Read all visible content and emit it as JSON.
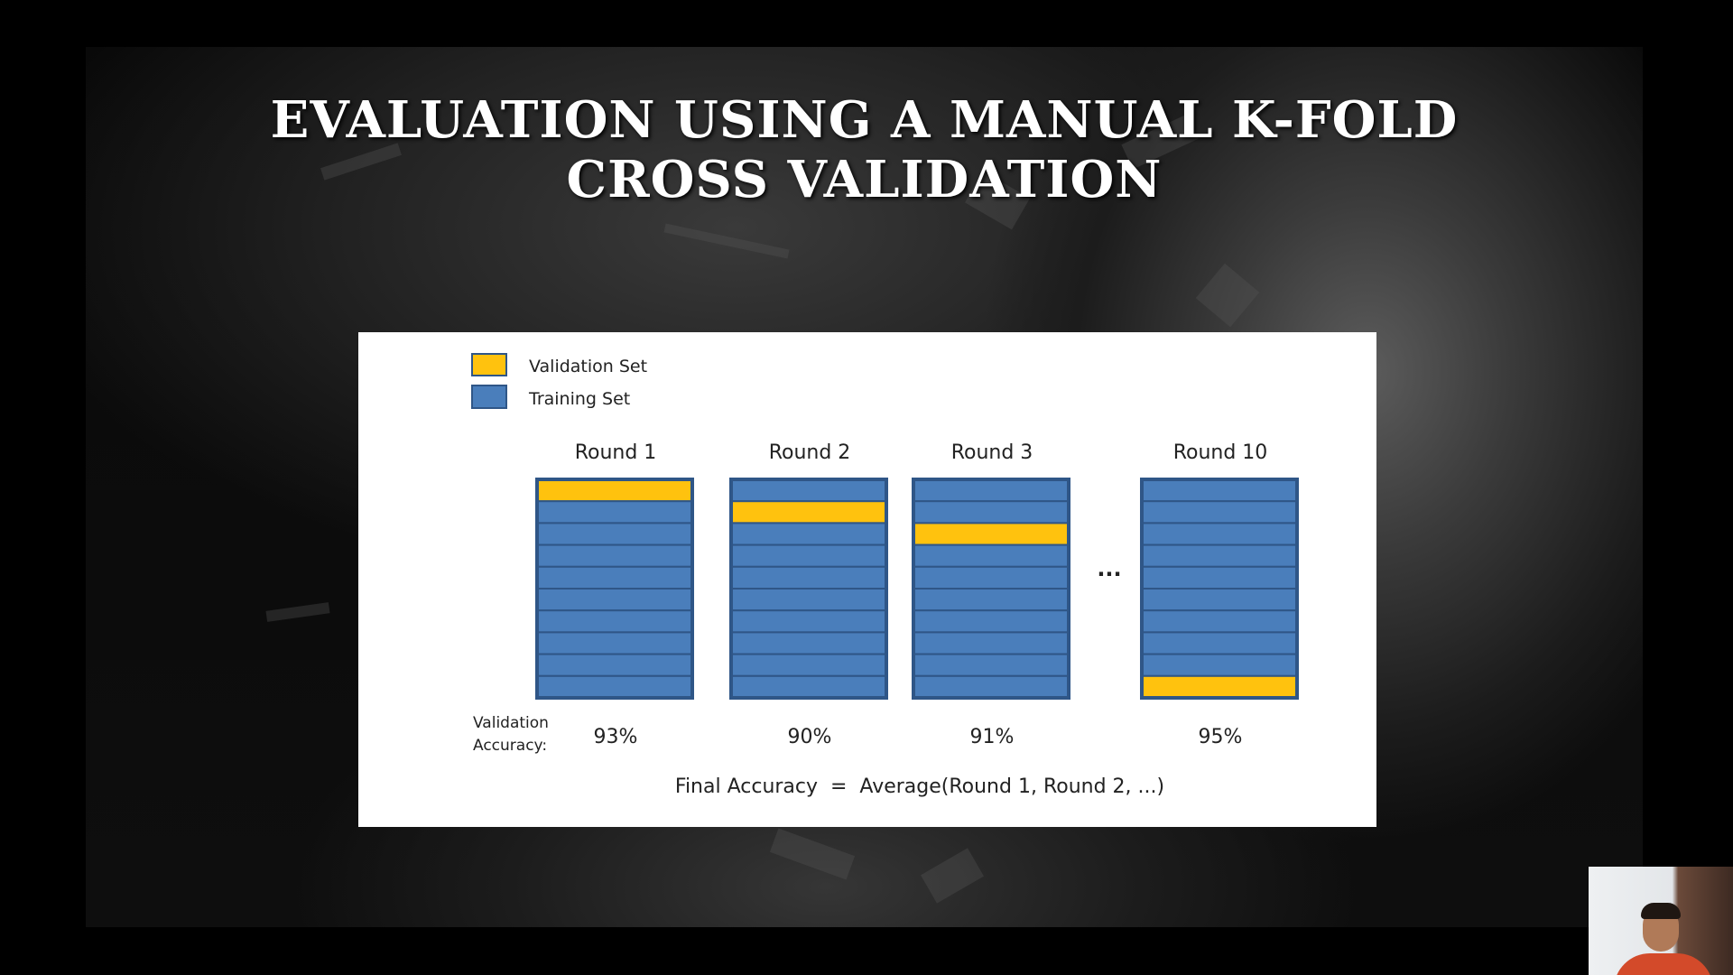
{
  "slide": {
    "title_lines": [
      "EVALUATION USING A MANUAL K-FOLD",
      "CROSS VALIDATION"
    ]
  },
  "diagram": {
    "legend": [
      {
        "label": "Validation Set",
        "color": "#FFC20E"
      },
      {
        "label": "Training Set",
        "color": "#4A7EBB"
      }
    ],
    "folds_per_round": 10,
    "rounds": [
      {
        "label": "Round 1",
        "validation_fold": 1,
        "accuracy": "93%"
      },
      {
        "label": "Round 2",
        "validation_fold": 2,
        "accuracy": "90%"
      },
      {
        "label": "Round 3",
        "validation_fold": 3,
        "accuracy": "91%"
      },
      {
        "label": "Round 10",
        "validation_fold": 10,
        "accuracy": "95%"
      }
    ],
    "ellipsis": "...",
    "accuracy_label": [
      "Validation",
      "Accuracy:"
    ],
    "final_formula": "Final Accuracy  =  Average(Round 1, Round 2, ...)",
    "colors": {
      "validation": "#FFC20E",
      "training": "#4A7EBB",
      "outline": "#2F5687"
    }
  }
}
